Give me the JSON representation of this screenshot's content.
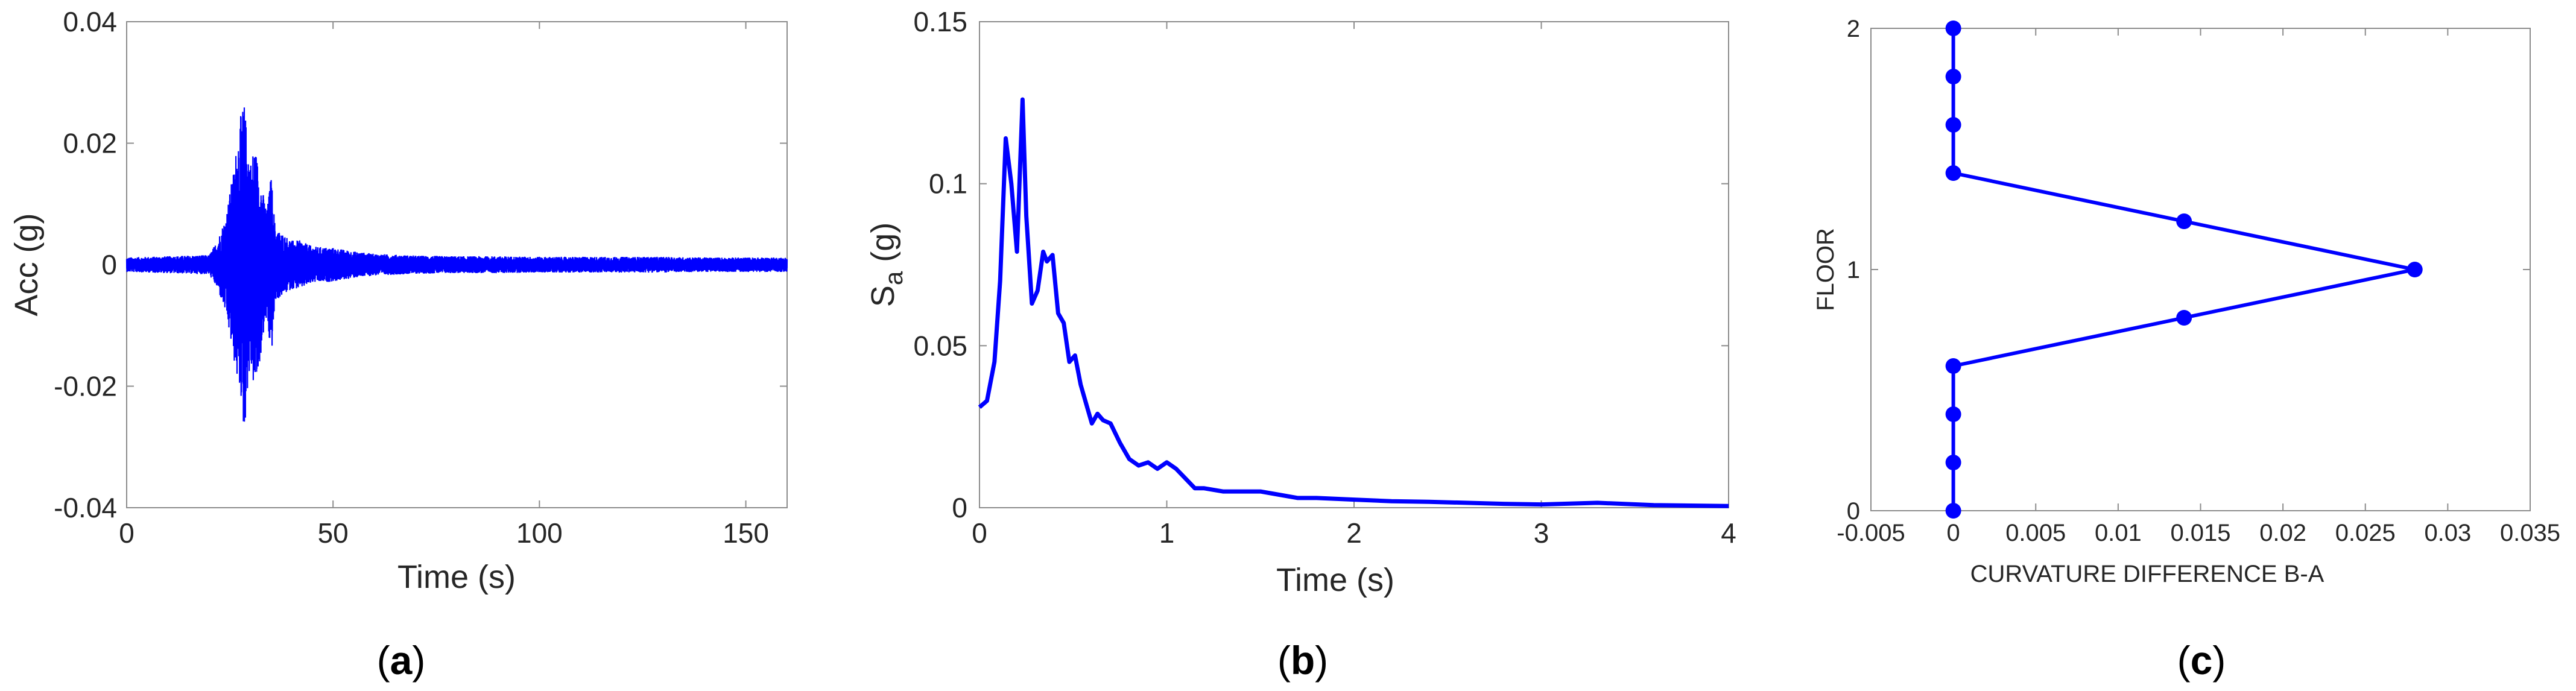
{
  "colors": {
    "series": "#0000ff",
    "axis": "#8c8c8c",
    "text": "#262626"
  },
  "chart_data": [
    {
      "type": "line",
      "panel_label": {
        "open": "(",
        "letter": "a",
        "close": ")"
      },
      "xlabel": "Time (s)",
      "ylabel": "Acc (g)",
      "xlim": [
        0,
        160
      ],
      "ylim": [
        -0.04,
        0.04
      ],
      "xticks": [
        0,
        50,
        100,
        150
      ],
      "xtick_labels": [
        "0",
        "50",
        "100",
        "150"
      ],
      "yticks": [
        -0.04,
        -0.02,
        0,
        0.02,
        0.04
      ],
      "ytick_labels": [
        "-0.04",
        "-0.02",
        "0",
        "0.02",
        "0.04"
      ],
      "grid": false,
      "series": [
        {
          "x": [
            0,
            10,
            20,
            22,
            24,
            25,
            26,
            27,
            28,
            28.5,
            29,
            30,
            31,
            32,
            33,
            34,
            35,
            36,
            38,
            40,
            42,
            45,
            50,
            55,
            60,
            70,
            80,
            90,
            100,
            110,
            120,
            130,
            140,
            150,
            160
          ],
          "envelope_max": [
            0.0012,
            0.0014,
            0.0016,
            0.004,
            0.008,
            0.012,
            0.016,
            0.022,
            0.026,
            0.0265,
            0.023,
            0.017,
            0.02,
            0.016,
            0.012,
            0.009,
            0.015,
            0.006,
            0.005,
            0.004,
            0.004,
            0.003,
            0.0028,
            0.0022,
            0.0018,
            0.0015,
            0.0014,
            0.0014,
            0.0013,
            0.0013,
            0.0013,
            0.0013,
            0.0012,
            0.0012,
            0.0012
          ],
          "envelope_min": [
            -0.0012,
            -0.0014,
            -0.0016,
            -0.004,
            -0.008,
            -0.012,
            -0.016,
            -0.02,
            -0.023,
            -0.03,
            -0.022,
            -0.017,
            -0.021,
            -0.018,
            -0.012,
            -0.009,
            -0.016,
            -0.006,
            -0.005,
            -0.004,
            -0.004,
            -0.003,
            -0.0028,
            -0.0022,
            -0.0018,
            -0.0015,
            -0.0014,
            -0.0014,
            -0.0013,
            -0.0013,
            -0.0013,
            -0.0013,
            -0.0012,
            -0.0012,
            -0.0012
          ]
        }
      ]
    },
    {
      "type": "line",
      "panel_label": {
        "open": "(",
        "letter": "b",
        "close": ")"
      },
      "xlabel": "Time (s)",
      "ylabel": "S",
      "ylabel_sub": "a",
      "ylabel_suffix": " (g)",
      "xlim": [
        0,
        4
      ],
      "ylim": [
        0,
        0.15
      ],
      "xticks": [
        0,
        1,
        2,
        3,
        4
      ],
      "xtick_labels": [
        "0",
        "1",
        "2",
        "3",
        "4"
      ],
      "yticks": [
        0,
        0.05,
        0.1,
        0.15
      ],
      "ytick_labels": [
        "0",
        "0.05",
        "0.1",
        "0.15"
      ],
      "grid": false,
      "series": [
        {
          "x": [
            0,
            0.04,
            0.08,
            0.11,
            0.14,
            0.17,
            0.2,
            0.23,
            0.25,
            0.28,
            0.31,
            0.34,
            0.36,
            0.39,
            0.42,
            0.45,
            0.48,
            0.51,
            0.54,
            0.57,
            0.6,
            0.63,
            0.66,
            0.7,
            0.75,
            0.8,
            0.85,
            0.9,
            0.95,
            1.0,
            1.05,
            1.1,
            1.15,
            1.2,
            1.3,
            1.4,
            1.5,
            1.6,
            1.7,
            1.8,
            2.0,
            2.2,
            2.4,
            2.6,
            2.8,
            3.0,
            3.3,
            3.6,
            4.0
          ],
          "y": [
            0.031,
            0.033,
            0.045,
            0.07,
            0.114,
            0.1,
            0.079,
            0.126,
            0.09,
            0.063,
            0.067,
            0.079,
            0.076,
            0.078,
            0.06,
            0.057,
            0.045,
            0.047,
            0.038,
            0.032,
            0.026,
            0.029,
            0.027,
            0.026,
            0.02,
            0.015,
            0.013,
            0.014,
            0.012,
            0.014,
            0.012,
            0.009,
            0.006,
            0.006,
            0.005,
            0.005,
            0.005,
            0.004,
            0.003,
            0.003,
            0.0025,
            0.002,
            0.0018,
            0.0015,
            0.0012,
            0.001,
            0.0015,
            0.0008,
            0.0005
          ]
        }
      ]
    },
    {
      "type": "line",
      "panel_label": {
        "open": "(",
        "letter": "c",
        "close": ")"
      },
      "xlabel": "CURVATURE DIFFERENCE B-A",
      "ylabel": "FLOOR",
      "xlim": [
        -0.005,
        0.035
      ],
      "ylim": [
        0,
        2
      ],
      "xticks": [
        -0.005,
        0,
        0.005,
        0.01,
        0.015,
        0.02,
        0.025,
        0.03,
        0.035
      ],
      "xtick_labels": [
        "-0.005",
        "0",
        "0.005",
        "0.01",
        "0.015",
        "0.02",
        "0.025",
        "0.03",
        "0.035"
      ],
      "yticks": [
        0,
        1,
        2
      ],
      "ytick_labels": [
        "0",
        "1",
        "2"
      ],
      "grid": false,
      "series": [
        {
          "x": [
            0,
            0,
            0,
            0,
            0.014,
            0.028,
            0.014,
            0,
            0,
            0,
            0
          ],
          "y": [
            2,
            1.8,
            1.6,
            1.4,
            1.2,
            1.0,
            0.8,
            0.6,
            0.4,
            0.2,
            0
          ],
          "markers": true
        }
      ]
    }
  ]
}
